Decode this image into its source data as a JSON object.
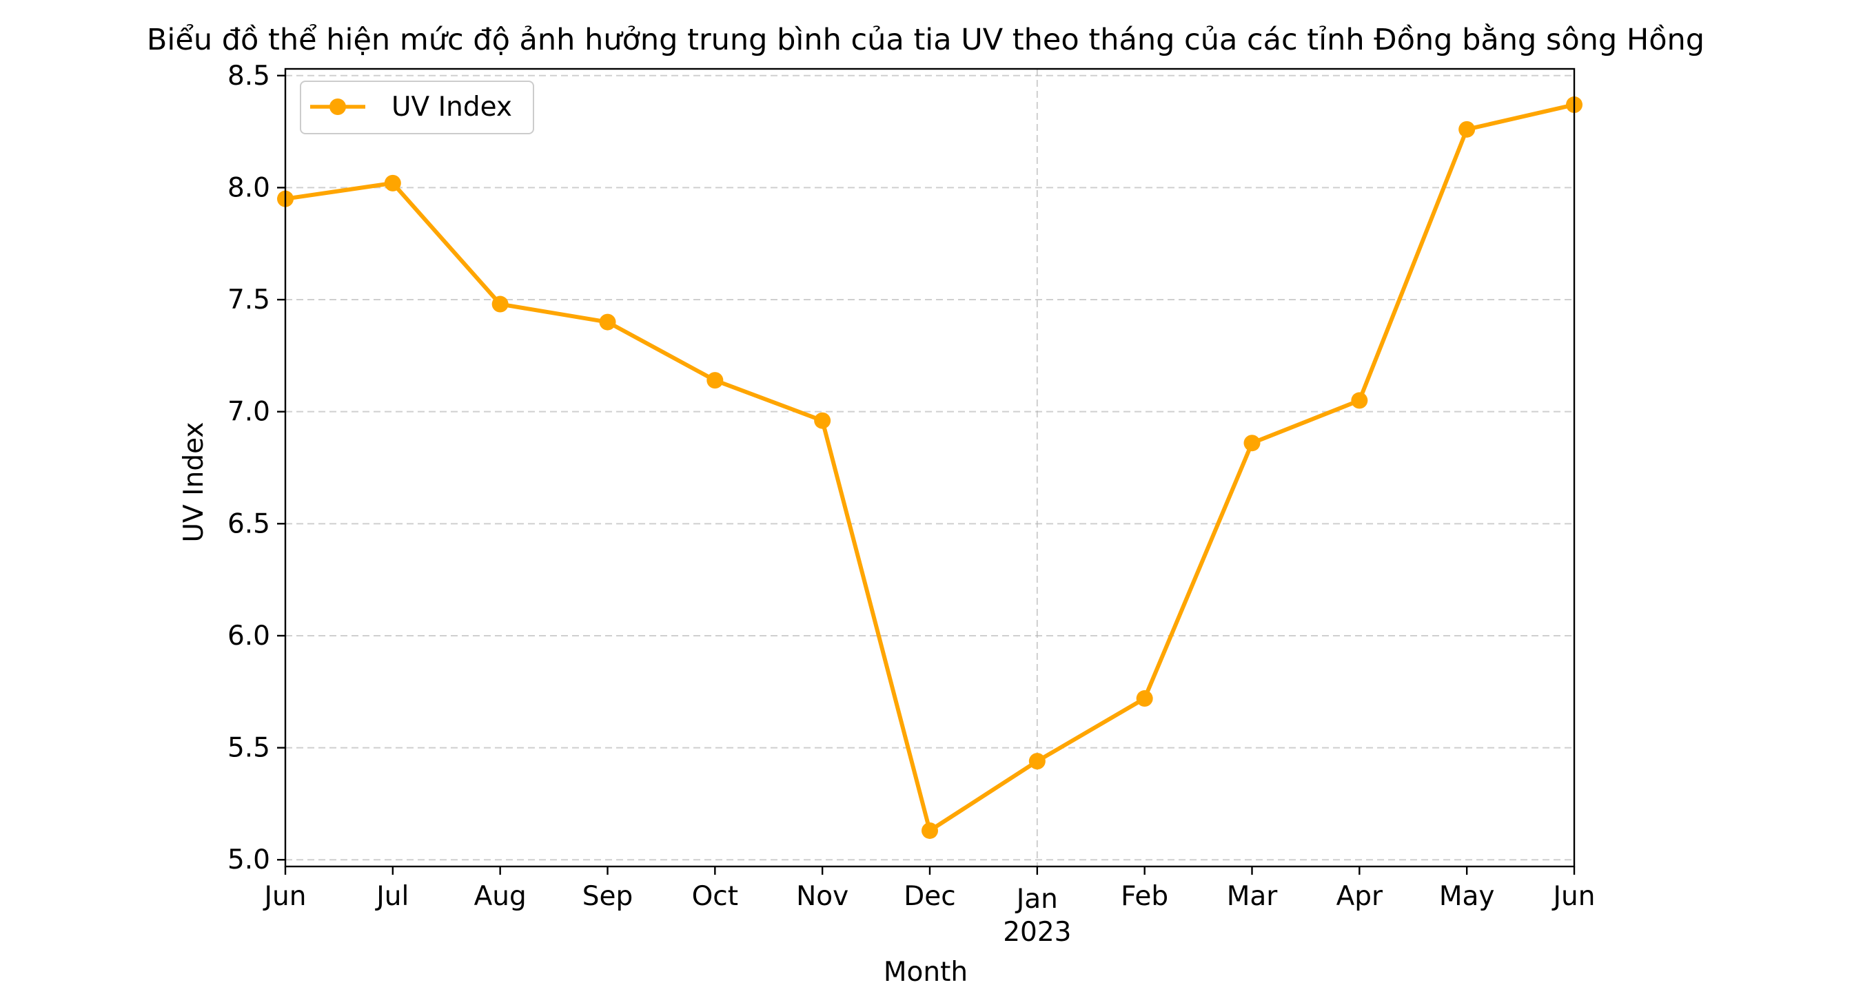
{
  "chart_data": {
    "type": "line",
    "title": "Biểu đồ thể hiện mức độ ảnh hưởng trung bình của tia UV theo tháng của các tỉnh Đồng bằng sông Hồng",
    "xlabel": "Month",
    "ylabel": "UV Index",
    "ylim": [
      4.97,
      8.53
    ],
    "yticks": [
      "5.0",
      "5.5",
      "6.0",
      "6.5",
      "7.0",
      "7.5",
      "8.0",
      "8.5"
    ],
    "categories": [
      "Jun",
      "Jul",
      "Aug",
      "Sep",
      "Oct",
      "Nov",
      "Dec",
      "Jan",
      "Feb",
      "Mar",
      "Apr",
      "May",
      "Jun"
    ],
    "year_label": "2023",
    "year_label_index": 7,
    "grid": true,
    "legend_position": "top-left",
    "series": [
      {
        "name": "UV Index",
        "color": "#FFA500",
        "values": [
          7.95,
          8.02,
          7.48,
          7.4,
          7.14,
          6.96,
          5.13,
          5.44,
          5.72,
          6.86,
          7.05,
          8.26,
          8.37
        ]
      }
    ]
  }
}
